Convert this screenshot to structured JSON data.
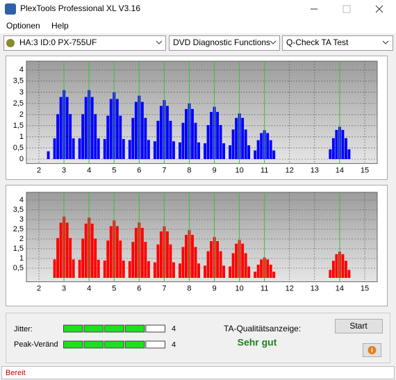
{
  "window": {
    "title": "PlexTools Professional XL V3.16"
  },
  "menu": [
    "Optionen",
    "Help"
  ],
  "toolbar": [
    "HA:3 ID:0  PX-755UF",
    "DVD Diagnostic Functions",
    "Q-Check TA Test"
  ],
  "chart_data": [
    {
      "type": "bar",
      "color": "#0000ff",
      "xlim": [
        1.5,
        15.5
      ],
      "ylim": [
        -0.2,
        4.4
      ],
      "xticks": [
        2,
        3,
        4,
        5,
        6,
        7,
        8,
        9,
        10,
        11,
        12,
        13,
        14,
        15
      ],
      "yticks": [
        0,
        {
          "value": 0.5,
          "label": "0,5"
        },
        1,
        {
          "value": 1.5,
          "label": "1,5"
        },
        2,
        {
          "value": 2.5,
          "label": "2,5"
        },
        3,
        {
          "value": 3.5,
          "label": "3,5"
        },
        4
      ],
      "markers": [
        3,
        4,
        5,
        6,
        7,
        8,
        9,
        10,
        11,
        14
      ],
      "marker_color": "#40c040",
      "grid": true,
      "x": [
        2.375,
        2.625,
        2.75,
        2.875,
        3,
        3.125,
        3.25,
        3.375,
        3.625,
        3.75,
        3.875,
        4,
        4.125,
        4.25,
        4.375,
        4.625,
        4.75,
        4.875,
        5,
        5.125,
        5.25,
        5.375,
        5.625,
        5.75,
        5.875,
        6,
        6.125,
        6.25,
        6.375,
        6.625,
        6.75,
        6.875,
        7,
        7.125,
        7.25,
        7.375,
        7.625,
        7.75,
        7.875,
        8,
        8.125,
        8.25,
        8.375,
        8.625,
        8.75,
        8.875,
        9,
        9.125,
        9.25,
        9.375,
        9.625,
        9.75,
        9.875,
        10,
        10.125,
        10.25,
        10.375,
        10.625,
        10.75,
        10.875,
        11,
        11.125,
        11.25,
        11.375,
        13.625,
        13.75,
        13.875,
        14,
        14.125,
        14.25,
        14.375
      ],
      "values": [
        0.35,
        0.93,
        2.02,
        2.79,
        3.1,
        2.79,
        2.02,
        0.93,
        0.93,
        2.02,
        2.79,
        3.1,
        2.79,
        2.02,
        0.93,
        0.9,
        1.95,
        2.7,
        3,
        2.7,
        1.95,
        0.9,
        0.86,
        1.85,
        2.57,
        2.85,
        2.57,
        1.85,
        0.86,
        0.8,
        1.72,
        2.39,
        2.65,
        2.39,
        1.72,
        0.8,
        0.75,
        1.63,
        2.25,
        2.5,
        2.25,
        1.63,
        0.75,
        0.71,
        1.53,
        2.12,
        2.35,
        2.12,
        1.53,
        0.71,
        0.62,
        1.33,
        1.85,
        2.05,
        1.85,
        1.33,
        0.62,
        0.39,
        0.85,
        1.17,
        1.3,
        1.17,
        0.85,
        0.39,
        0.44,
        0.94,
        1.31,
        1.45,
        1.31,
        0.94,
        0.44
      ]
    },
    {
      "type": "bar",
      "color": "#ff0000",
      "xlim": [
        1.5,
        15.5
      ],
      "ylim": [
        -0.2,
        4.4
      ],
      "xticks": [
        2,
        3,
        4,
        5,
        6,
        7,
        8,
        9,
        10,
        11,
        12,
        13,
        14,
        15
      ],
      "yticks": [
        {
          "value": 0.5,
          "label": "0,5"
        },
        1,
        {
          "value": 1.5,
          "label": "1,5"
        },
        2,
        {
          "value": 2.5,
          "label": "2,5"
        },
        3,
        {
          "value": 3.5,
          "label": "3,5"
        },
        4
      ],
      "markers": [
        3,
        4,
        5,
        6,
        7,
        8,
        9,
        10,
        11,
        14
      ],
      "marker_color": "#40c040",
      "grid": true,
      "x": [
        2.625,
        2.75,
        2.875,
        3,
        3.125,
        3.25,
        3.375,
        3.625,
        3.75,
        3.875,
        4,
        4.125,
        4.25,
        4.375,
        4.625,
        4.75,
        4.875,
        5,
        5.125,
        5.25,
        5.375,
        5.625,
        5.75,
        5.875,
        6,
        6.125,
        6.25,
        6.375,
        6.625,
        6.75,
        6.875,
        7,
        7.125,
        7.25,
        7.375,
        7.625,
        7.75,
        7.875,
        8,
        8.125,
        8.25,
        8.375,
        8.625,
        8.75,
        8.875,
        9,
        9.125,
        9.25,
        9.375,
        9.625,
        9.75,
        9.875,
        10,
        10.125,
        10.25,
        10.375,
        10.625,
        10.75,
        10.875,
        11,
        11.125,
        11.25,
        11.375,
        13.625,
        13.75,
        13.875,
        14,
        14.125,
        14.25,
        14.375
      ],
      "values": [
        0.95,
        2.05,
        2.84,
        3.15,
        2.84,
        2.05,
        0.95,
        0.93,
        2.02,
        2.79,
        3.1,
        2.79,
        2.02,
        0.93,
        0.89,
        1.92,
        2.66,
        2.95,
        2.66,
        1.92,
        0.89,
        0.86,
        1.85,
        2.57,
        2.85,
        2.57,
        1.85,
        0.86,
        0.8,
        1.72,
        2.39,
        2.65,
        2.39,
        1.72,
        0.8,
        0.74,
        1.59,
        2.21,
        2.45,
        2.21,
        1.59,
        0.74,
        0.63,
        1.37,
        1.89,
        2.1,
        1.89,
        1.37,
        0.63,
        0.59,
        1.27,
        1.76,
        1.95,
        1.76,
        1.27,
        0.59,
        0.32,
        0.68,
        0.95,
        1.05,
        0.95,
        0.68,
        0.32,
        0.41,
        0.88,
        1.22,
        1.35,
        1.22,
        0.88,
        0.41
      ]
    }
  ],
  "meters": [
    {
      "label": "Jitter:",
      "value": 4,
      "segments": 5
    },
    {
      "label": "Peak-Veränd",
      "value": 4,
      "segments": 5
    }
  ],
  "quality": {
    "label": "TA-Qualitätsanzeige:",
    "result": "Sehr gut"
  },
  "buttons": {
    "start": "Start",
    "info": "i"
  },
  "status": "Bereit"
}
